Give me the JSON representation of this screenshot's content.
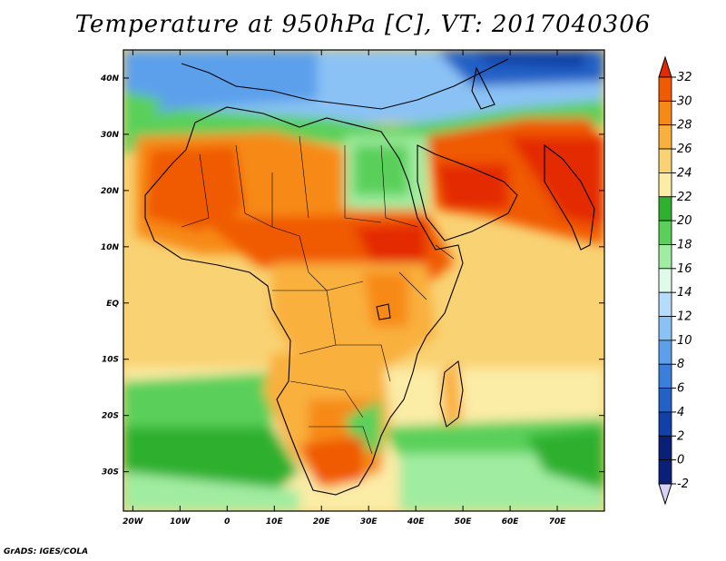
{
  "title": "Temperature at 950hPa [C], VT: 2017040306",
  "credit": "GrADS: IGES/COLA",
  "map": {
    "lon_labels": [
      "20W",
      "10W",
      "0",
      "10E",
      "20E",
      "30E",
      "40E",
      "50E",
      "60E",
      "70E"
    ],
    "lon_values": [
      -20,
      -10,
      0,
      10,
      20,
      30,
      40,
      50,
      60,
      70
    ],
    "lat_labels": [
      "40N",
      "30N",
      "20N",
      "10N",
      "EQ",
      "10S",
      "20S",
      "30S"
    ],
    "lat_values": [
      40,
      30,
      20,
      10,
      0,
      -10,
      -20,
      -30
    ],
    "lon_range": [
      -22,
      80
    ],
    "lat_range": [
      -37,
      45
    ]
  },
  "colorbar": {
    "labels": [
      "32",
      "30",
      "28",
      "26",
      "24",
      "22",
      "20",
      "18",
      "16",
      "14",
      "12",
      "10",
      "8",
      "6",
      "4",
      "2",
      "0",
      "-2"
    ],
    "colors": [
      "#e42a00",
      "#f05a00",
      "#f78a14",
      "#f9b03c",
      "#f9d273",
      "#fbeca6",
      "#2fb02f",
      "#5ad05a",
      "#a0eca0",
      "#e0faea",
      "#b5dcfb",
      "#8ac2f5",
      "#5ca0ec",
      "#3a7fdc",
      "#2361c6",
      "#1040a8",
      "#0a1f78",
      "#d9d2f7"
    ]
  },
  "landmarks": {
    "ocean_warm": "#fbeca6",
    "ocean_tropical": "#f9d273"
  }
}
